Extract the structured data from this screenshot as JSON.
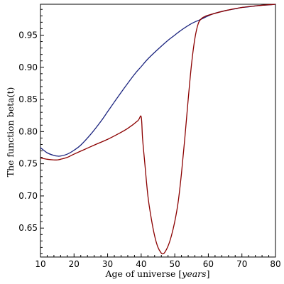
{
  "chart_data": {
    "type": "line",
    "title": "",
    "xlabel": "Age of universe",
    "xlabel_unit": "years",
    "ylabel": "The function  beta(t)",
    "xlim": [
      10,
      80
    ],
    "ylim": [
      0.605,
      0.998
    ],
    "x_ticks": [
      10,
      20,
      30,
      40,
      50,
      60,
      70,
      80
    ],
    "y_ticks": [
      0.65,
      0.7,
      0.75,
      0.8,
      0.85,
      0.9,
      0.95
    ],
    "y_tick_labels": [
      "0.65",
      "0.70",
      "0.75",
      "0.80",
      "0.85",
      "0.90",
      "0.95"
    ],
    "grid": false,
    "series": [
      {
        "color": "#1a237e",
        "x": [
          10,
          12,
          14,
          15,
          16,
          18,
          20,
          22,
          25,
          28,
          30,
          32,
          35,
          38,
          40,
          42,
          45,
          48,
          50,
          52,
          55,
          58,
          60,
          62,
          65,
          68,
          70,
          72,
          75,
          78,
          80
        ],
        "y": [
          0.775,
          0.767,
          0.763,
          0.762,
          0.762,
          0.765,
          0.771,
          0.779,
          0.796,
          0.816,
          0.831,
          0.846,
          0.868,
          0.889,
          0.901,
          0.913,
          0.928,
          0.942,
          0.95,
          0.958,
          0.968,
          0.975,
          0.98,
          0.984,
          0.988,
          0.991,
          0.993,
          0.994,
          0.996,
          0.997,
          0.998
        ]
      },
      {
        "color": "#8b0000",
        "x": [
          10,
          12,
          14,
          15,
          16,
          18,
          20,
          23,
          26,
          30,
          33,
          36,
          39,
          40,
          40.4,
          41,
          42,
          43,
          44,
          45,
          46,
          46.5,
          47,
          48,
          49,
          50,
          51,
          52,
          53,
          54,
          55,
          56,
          57,
          58,
          59,
          60,
          65,
          70,
          75,
          80
        ],
        "y": [
          0.759,
          0.757,
          0.756,
          0.756,
          0.757,
          0.76,
          0.765,
          0.772,
          0.779,
          0.788,
          0.796,
          0.805,
          0.817,
          0.823,
          0.79,
          0.755,
          0.7,
          0.665,
          0.638,
          0.62,
          0.611,
          0.61,
          0.612,
          0.622,
          0.638,
          0.66,
          0.69,
          0.735,
          0.79,
          0.85,
          0.905,
          0.945,
          0.968,
          0.976,
          0.979,
          0.981,
          0.988,
          0.993,
          0.996,
          0.998
        ]
      }
    ]
  }
}
